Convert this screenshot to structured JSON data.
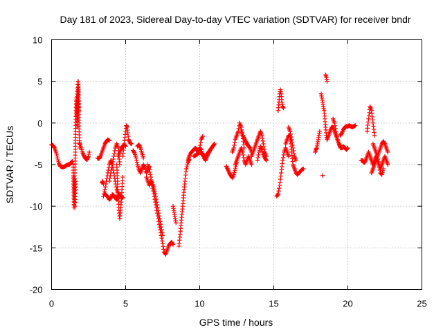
{
  "chart_data": {
    "type": "scatter",
    "title": "Day 181 of 2023, Sidereal Day-to-day VTEC variation (SDTVAR) for receiver bndr",
    "xlabel": "GPS time / hours",
    "ylabel": "SDTVAR / TECUs",
    "xlim": [
      0,
      25
    ],
    "ylim": [
      -20,
      10
    ],
    "x_ticks": [
      "0",
      "5",
      "10",
      "15",
      "20",
      "25"
    ],
    "y_ticks": [
      "10",
      "5",
      "0",
      "-5",
      "-10",
      "-15",
      "-20"
    ],
    "grid": true,
    "marker": "+",
    "color": "#ff0000",
    "series": [
      {
        "name": "seg-00-02",
        "x": [
          0.0,
          0.1,
          0.2,
          0.3,
          0.4,
          0.5,
          0.6,
          0.7,
          0.8,
          0.9,
          1.0,
          1.1,
          1.2,
          1.3,
          1.4
        ],
        "y": [
          -2.6,
          -2.7,
          -3.0,
          -3.5,
          -4.2,
          -4.9,
          -5.2,
          -5.3,
          -5.3,
          -5.2,
          -5.1,
          -5.0,
          -5.0,
          -4.8,
          -4.6
        ]
      },
      {
        "name": "seg-spike-1.6",
        "x": [
          1.45,
          1.48,
          1.5,
          1.52,
          1.55,
          1.58,
          1.6,
          1.62,
          1.65,
          1.68,
          1.7,
          1.72,
          1.75,
          1.78,
          1.8,
          1.82,
          1.85,
          1.88,
          1.9
        ],
        "y": [
          -5.0,
          -7.0,
          -9.0,
          -10.2,
          -8.5,
          -6.0,
          -3.5,
          -1.0,
          1.5,
          3.0,
          2.0,
          -0.5,
          0.5,
          3.5,
          5.0,
          3.0,
          0.0,
          -2.5,
          -3.0
        ]
      },
      {
        "name": "seg-spike-low",
        "x": [
          1.5,
          1.52,
          1.54,
          1.56,
          1.58,
          1.6,
          1.62,
          1.64
        ],
        "y": [
          -6.5,
          -7.5,
          -8.5,
          -9.5,
          -10.0,
          -9.2,
          -8.0,
          -7.0
        ]
      },
      {
        "name": "seg-02-26",
        "x": [
          1.9,
          2.0,
          2.1,
          2.2,
          2.3,
          2.4,
          2.5,
          2.55
        ],
        "y": [
          -2.4,
          -3.0,
          -3.6,
          -4.0,
          -4.3,
          -4.4,
          -4.0,
          -3.5
        ]
      },
      {
        "name": "seg-spike-1.8",
        "x": [
          1.7,
          1.72,
          1.74,
          1.76,
          1.78,
          1.8,
          1.82,
          1.84
        ],
        "y": [
          1.0,
          2.5,
          3.8,
          4.6,
          5.0,
          4.2,
          3.0,
          1.5
        ]
      },
      {
        "name": "seg-3-4",
        "x": [
          3.1,
          3.2,
          3.3,
          3.4,
          3.5,
          3.6,
          3.7,
          3.8,
          3.9
        ],
        "y": [
          -4.2,
          -4.3,
          -4.0,
          -3.5,
          -3.0,
          -2.5,
          -2.2,
          -2.0,
          -2.1
        ]
      },
      {
        "name": "seg-35-45a",
        "x": [
          3.5,
          3.6,
          3.7,
          3.8,
          3.9,
          4.0,
          4.1,
          4.2,
          4.3,
          4.4,
          4.5
        ],
        "y": [
          -8.8,
          -8.0,
          -7.0,
          -6.0,
          -5.0,
          -4.5,
          -5.0,
          -6.0,
          -7.0,
          -8.0,
          -8.5
        ]
      },
      {
        "name": "seg-35-45b",
        "x": [
          3.6,
          3.7,
          3.8,
          3.9,
          4.0,
          4.1,
          4.2,
          4.3,
          4.4,
          4.5,
          4.6,
          4.7,
          4.8
        ],
        "y": [
          -8.5,
          -8.7,
          -8.9,
          -9.2,
          -9.0,
          -8.6,
          -8.7,
          -9.0,
          -9.2,
          -8.8,
          -8.6,
          -8.8,
          -9.0
        ]
      },
      {
        "name": "seg-39-46",
        "x": [
          3.9,
          4.0,
          4.1,
          4.2,
          4.3,
          4.4,
          4.5,
          4.55,
          4.6
        ],
        "y": [
          -7.0,
          -6.0,
          -5.0,
          -4.0,
          -3.0,
          -2.5,
          -3.0,
          -4.0,
          -5.0
        ]
      },
      {
        "name": "seg-dip-45",
        "x": [
          4.4,
          4.45,
          4.5,
          4.55,
          4.6,
          4.65,
          4.7,
          4.75,
          4.8
        ],
        "y": [
          -5.0,
          -7.0,
          -9.0,
          -10.5,
          -11.5,
          -10.8,
          -9.5,
          -8.0,
          -6.5
        ]
      },
      {
        "name": "seg-46-50",
        "x": [
          4.5,
          4.6,
          4.7,
          4.8,
          4.9,
          5.0
        ],
        "y": [
          -4.0,
          -3.5,
          -3.0,
          -2.8,
          -2.6,
          -2.8
        ]
      },
      {
        "name": "seg-50-54",
        "x": [
          4.8,
          4.9,
          5.0,
          5.05,
          5.1,
          5.15,
          5.2,
          5.3,
          5.4
        ],
        "y": [
          -4.0,
          -2.5,
          -1.0,
          -0.3,
          -0.5,
          -1.2,
          -2.0,
          -2.4,
          -2.5
        ]
      },
      {
        "name": "seg-34-36",
        "x": [
          3.4,
          3.45,
          3.5
        ],
        "y": [
          -7.2,
          -7.0,
          -7.3
        ]
      },
      {
        "name": "seg-55-66",
        "x": [
          5.5,
          5.6,
          5.7,
          5.8,
          5.9,
          6.0,
          6.1,
          6.2,
          6.3,
          6.4,
          6.5,
          6.6
        ],
        "y": [
          -3.3,
          -3.6,
          -4.2,
          -5.0,
          -5.6,
          -6.0,
          -5.5,
          -5.0,
          -5.4,
          -6.0,
          -5.6,
          -5.2
        ]
      },
      {
        "name": "seg-56-60",
        "x": [
          5.8,
          5.9,
          6.0,
          6.1,
          6.2
        ],
        "y": [
          -2.8,
          -2.6,
          -3.0,
          -3.6,
          -4.2
        ]
      },
      {
        "name": "seg-dive",
        "x": [
          6.5,
          6.6,
          6.7,
          6.8,
          6.9,
          7.0,
          7.1,
          7.2,
          7.3,
          7.4,
          7.5,
          7.6,
          7.7,
          7.8,
          7.9
        ],
        "y": [
          -5.0,
          -5.6,
          -6.5,
          -7.5,
          -8.5,
          -9.5,
          -10.5,
          -11.5,
          -12.5,
          -13.5,
          -14.5,
          -15.5,
          -15.8,
          -15.3,
          -14.8
        ]
      },
      {
        "name": "seg-dive-b",
        "x": [
          6.4,
          6.5,
          6.6,
          6.7,
          6.8,
          6.9,
          7.0,
          7.1,
          7.2,
          7.3,
          7.4,
          7.5
        ],
        "y": [
          -6.5,
          -7.0,
          -7.5,
          -7.0,
          -7.2,
          -7.8,
          -8.5,
          -9.5,
          -10.5,
          -11.5,
          -12.5,
          -13.5
        ]
      },
      {
        "name": "seg-80-84",
        "x": [
          7.9,
          8.0,
          8.1,
          8.2
        ],
        "y": [
          -14.8,
          -14.5,
          -14.3,
          -14.6
        ]
      },
      {
        "name": "seg-82-85",
        "x": [
          8.2,
          8.25,
          8.3,
          8.35,
          8.4
        ],
        "y": [
          -10.0,
          -10.5,
          -11.0,
          -11.5,
          -12.0
        ]
      },
      {
        "name": "seg-85-95",
        "x": [
          8.6,
          8.7,
          8.8,
          8.9,
          9.0,
          9.1,
          9.2,
          9.3
        ],
        "y": [
          -14.8,
          -13.0,
          -11.0,
          -9.0,
          -7.0,
          -5.5,
          -4.8,
          -4.4
        ]
      },
      {
        "name": "seg-92-102",
        "x": [
          9.2,
          9.3,
          9.4,
          9.5,
          9.6,
          9.7,
          9.8,
          9.9,
          10.0,
          10.1,
          10.2
        ],
        "y": [
          -4.5,
          -4.0,
          -3.6,
          -3.4,
          -3.2,
          -3.0,
          -3.2,
          -3.5,
          -3.0,
          -2.0,
          -1.6
        ]
      },
      {
        "name": "seg-96-110",
        "x": [
          9.6,
          9.8,
          10.0,
          10.2,
          10.4,
          10.6,
          10.8,
          11.0
        ],
        "y": [
          -4.0,
          -3.8,
          -3.5,
          -3.8,
          -4.0,
          -3.5,
          -3.0,
          -2.5
        ]
      },
      {
        "name": "seg-100-108",
        "x": [
          10.0,
          10.1,
          10.2,
          10.3,
          10.4,
          10.5,
          10.6,
          10.7
        ],
        "y": [
          -3.0,
          -3.2,
          -3.8,
          -4.2,
          -4.5,
          -4.0,
          -3.6,
          -3.3
        ]
      },
      {
        "name": "seg-118-125",
        "x": [
          11.8,
          11.9,
          12.0,
          12.1,
          12.2,
          12.3,
          12.4,
          12.5
        ],
        "y": [
          -5.2,
          -5.6,
          -6.0,
          -6.3,
          -6.6,
          -6.2,
          -5.5,
          -4.8
        ]
      },
      {
        "name": "seg-12-13",
        "x": [
          12.2,
          12.3,
          12.4,
          12.5,
          12.6,
          12.7,
          12.8,
          12.9,
          13.0
        ],
        "y": [
          -3.5,
          -3.0,
          -2.0,
          -1.5,
          -1.0,
          0.0,
          -0.5,
          -1.5,
          -3.0
        ]
      },
      {
        "name": "seg-12-135",
        "x": [
          12.4,
          12.5,
          12.6,
          12.7,
          12.8,
          12.9,
          13.0,
          13.1,
          13.2,
          13.3,
          13.4,
          13.5
        ],
        "y": [
          -5.0,
          -4.5,
          -4.0,
          -3.5,
          -3.0,
          -3.5,
          -4.5,
          -5.0,
          -4.5,
          -4.0,
          -4.5,
          -5.0
        ]
      },
      {
        "name": "seg-128-135",
        "x": [
          12.8,
          12.9,
          13.0,
          13.1,
          13.2,
          13.3,
          13.4,
          13.5
        ],
        "y": [
          -1.0,
          -1.5,
          -1.8,
          -2.2,
          -2.5,
          -2.8,
          -3.0,
          -3.5
        ]
      },
      {
        "name": "seg-135-145",
        "x": [
          13.5,
          13.6,
          13.7,
          13.8,
          13.9,
          14.0,
          14.1,
          14.2,
          14.3,
          14.4,
          14.5
        ],
        "y": [
          -4.0,
          -3.5,
          -3.0,
          -2.5,
          -2.0,
          -1.5,
          -1.0,
          -1.5,
          -2.5,
          -3.5,
          -4.0
        ]
      },
      {
        "name": "seg-140-145",
        "x": [
          13.9,
          14.0,
          14.1,
          14.2,
          14.3,
          14.4,
          14.5
        ],
        "y": [
          -4.5,
          -3.5,
          -2.8,
          -3.2,
          -3.8,
          -4.2,
          -4.5
        ]
      },
      {
        "name": "seg-152-158",
        "x": [
          15.2,
          15.3,
          15.4,
          15.5,
          15.6,
          15.7,
          15.8,
          15.9,
          16.0
        ],
        "y": [
          -8.8,
          -8.5,
          -7.5,
          -6.0,
          -4.5,
          -3.5,
          -3.0,
          -3.5,
          -4.0
        ]
      },
      {
        "name": "seg-153-156",
        "x": [
          15.3,
          15.35,
          15.4,
          15.45,
          15.5,
          15.55,
          15.6,
          15.65
        ],
        "y": [
          1.5,
          2.5,
          3.5,
          4.0,
          3.5,
          2.5,
          2.0,
          1.8
        ]
      },
      {
        "name": "seg-156-17",
        "x": [
          15.8,
          15.9,
          16.0,
          16.1,
          16.2,
          16.3,
          16.4,
          16.5,
          16.6,
          16.7,
          16.8,
          16.9,
          17.0
        ],
        "y": [
          -2.5,
          -2.0,
          -1.5,
          -1.5,
          -3.5,
          -5.0,
          -5.5,
          -6.0,
          -6.2,
          -6.0,
          -5.8,
          -5.6,
          -5.5
        ]
      },
      {
        "name": "seg-160-165",
        "x": [
          16.0,
          16.1,
          16.2,
          16.3,
          16.4,
          16.5
        ],
        "y": [
          -0.5,
          -1.0,
          -2.0,
          -3.0,
          -4.0,
          -4.5
        ]
      },
      {
        "name": "seg-178-182",
        "x": [
          17.8,
          17.85,
          17.9,
          17.95,
          18.0,
          18.05,
          18.1
        ],
        "y": [
          -3.5,
          -3.2,
          -3.0,
          -2.5,
          -2.0,
          -1.5,
          -1.0
        ]
      },
      {
        "name": "seg-182-186",
        "x": [
          18.2,
          18.25,
          18.3,
          18.35,
          18.4,
          18.45,
          18.5,
          18.55,
          18.6
        ],
        "y": [
          3.5,
          3.0,
          2.5,
          2.0,
          1.5,
          0.5,
          -0.5,
          -1.5,
          -2.0
        ]
      },
      {
        "name": "seg-185-186",
        "x": [
          18.5,
          18.55,
          18.6
        ],
        "y": [
          5.8,
          5.5,
          5.0
        ]
      },
      {
        "name": "seg-183",
        "x": [
          18.3
        ],
        "y": [
          -6.3
        ]
      },
      {
        "name": "seg-186-20",
        "x": [
          18.6,
          18.7,
          18.8,
          18.9,
          19.0,
          19.1,
          19.2,
          19.3,
          19.4,
          19.5,
          19.6,
          19.7,
          19.8,
          19.9,
          20.0
        ],
        "y": [
          -2.0,
          -1.5,
          -1.0,
          -0.5,
          -0.5,
          -1.0,
          -1.5,
          -2.0,
          -2.5,
          -3.0,
          -3.0,
          -2.8,
          -3.0,
          -3.2,
          -3.0
        ]
      },
      {
        "name": "seg-190-197",
        "x": [
          19.0,
          19.1,
          19.2,
          19.3,
          19.4,
          19.5,
          19.6,
          19.7
        ],
        "y": [
          0.5,
          0.0,
          -1.0,
          -2.0,
          -2.5,
          -2.8,
          -3.0,
          -2.8
        ]
      },
      {
        "name": "seg-195-205",
        "x": [
          19.5,
          19.6,
          19.7,
          19.8,
          19.9,
          20.0,
          20.1,
          20.2,
          20.3,
          20.4,
          20.5
        ],
        "y": [
          -1.5,
          -1.2,
          -0.8,
          -0.5,
          -0.4,
          -0.4,
          -0.3,
          -0.4,
          -0.5,
          -0.4,
          -0.3
        ]
      },
      {
        "name": "seg-21-228",
        "x": [
          20.9,
          21.0,
          21.1,
          21.2,
          21.3,
          21.4,
          21.5,
          21.6,
          21.7,
          21.8,
          21.9,
          22.0,
          22.1,
          22.2,
          22.3,
          22.4,
          22.5,
          22.6,
          22.7
        ],
        "y": [
          -4.5,
          -4.5,
          -4.8,
          -4.5,
          -4.0,
          -3.5,
          -4.0,
          -4.5,
          -5.0,
          -4.5,
          -4.0,
          -4.5,
          -5.0,
          -5.5,
          -5.0,
          -4.5,
          -4.0,
          -4.5,
          -5.0
        ]
      },
      {
        "name": "seg-213-218",
        "x": [
          21.3,
          21.4,
          21.5,
          21.6,
          21.7,
          21.8
        ],
        "y": [
          -1.0,
          0.5,
          2.0,
          1.5,
          0.0,
          -1.5
        ]
      },
      {
        "name": "seg-216-228",
        "x": [
          21.6,
          21.7,
          21.8,
          21.9,
          22.0,
          22.1,
          22.2,
          22.3,
          22.4,
          22.5,
          22.6,
          22.7
        ],
        "y": [
          -6.0,
          -5.5,
          -5.0,
          -4.5,
          -4.0,
          -3.5,
          -3.0,
          -2.5,
          -2.2,
          -2.5,
          -3.0,
          -3.5
        ]
      },
      {
        "name": "seg-217-224",
        "x": [
          21.7,
          21.8,
          21.9,
          22.0,
          22.1,
          22.2,
          22.3,
          22.4
        ],
        "y": [
          -2.5,
          -3.0,
          -3.5,
          -4.0,
          -5.0,
          -6.0,
          -6.2,
          -5.5
        ]
      }
    ]
  }
}
